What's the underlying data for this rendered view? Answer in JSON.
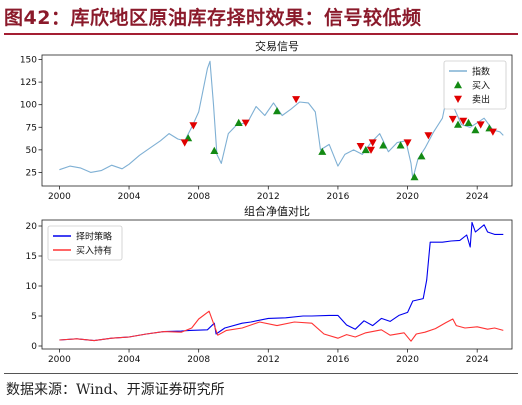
{
  "figure": {
    "title": "图42：库欣地区原油库存择时效果：信号较低频",
    "source": "数据来源：Wind、开源证券研究所"
  },
  "chart_data": [
    {
      "type": "line",
      "title": "交易信号",
      "xlim": [
        1999,
        2026
      ],
      "ylim": [
        10,
        155
      ],
      "x_ticks": [
        "2000",
        "2004",
        "2008",
        "2012",
        "2016",
        "2020",
        "2024"
      ],
      "y_ticks": [
        "25",
        "50",
        "75",
        "100",
        "125",
        "150"
      ],
      "legend_position": "top-right",
      "series": [
        {
          "name": "指数",
          "color": "#7fb0d4",
          "points": [
            [
              2000.0,
              28
            ],
            [
              2000.6,
              32
            ],
            [
              2001.2,
              30
            ],
            [
              2001.8,
              25
            ],
            [
              2002.4,
              27
            ],
            [
              2003.0,
              33
            ],
            [
              2003.6,
              29
            ],
            [
              2004.0,
              34
            ],
            [
              2004.6,
              44
            ],
            [
              2005.2,
              52
            ],
            [
              2005.8,
              60
            ],
            [
              2006.3,
              68
            ],
            [
              2006.8,
              62
            ],
            [
              2007.2,
              60
            ],
            [
              2007.6,
              75
            ],
            [
              2008.0,
              92
            ],
            [
              2008.5,
              140
            ],
            [
              2008.65,
              148
            ],
            [
              2008.85,
              100
            ],
            [
              2009.05,
              45
            ],
            [
              2009.3,
              35
            ],
            [
              2009.7,
              68
            ],
            [
              2010.2,
              78
            ],
            [
              2010.8,
              80
            ],
            [
              2011.3,
              98
            ],
            [
              2011.8,
              88
            ],
            [
              2012.3,
              102
            ],
            [
              2012.8,
              88
            ],
            [
              2013.3,
              95
            ],
            [
              2013.8,
              103
            ],
            [
              2014.3,
              102
            ],
            [
              2014.7,
              92
            ],
            [
              2015.0,
              50
            ],
            [
              2015.5,
              56
            ],
            [
              2016.0,
              32
            ],
            [
              2016.4,
              45
            ],
            [
              2016.9,
              50
            ],
            [
              2017.4,
              45
            ],
            [
              2017.9,
              58
            ],
            [
              2018.4,
              68
            ],
            [
              2018.9,
              48
            ],
            [
              2019.4,
              58
            ],
            [
              2019.9,
              60
            ],
            [
              2020.2,
              35
            ],
            [
              2020.3,
              18
            ],
            [
              2020.6,
              40
            ],
            [
              2021.0,
              52
            ],
            [
              2021.5,
              70
            ],
            [
              2022.0,
              85
            ],
            [
              2022.35,
              118
            ],
            [
              2022.7,
              95
            ],
            [
              2023.1,
              78
            ],
            [
              2023.6,
              75
            ],
            [
              2024.0,
              80
            ],
            [
              2024.4,
              85
            ],
            [
              2024.9,
              72
            ],
            [
              2025.3,
              70
            ],
            [
              2025.5,
              66
            ]
          ]
        },
        {
          "name": "买入",
          "color": "#138a13",
          "marker": "triangle-up",
          "points": [
            [
              2007.4,
              63
            ],
            [
              2008.9,
              49
            ],
            [
              2010.3,
              80
            ],
            [
              2012.5,
              93
            ],
            [
              2015.1,
              48
            ],
            [
              2017.6,
              50
            ],
            [
              2018.6,
              55
            ],
            [
              2019.6,
              55
            ],
            [
              2020.4,
              20
            ],
            [
              2020.8,
              43
            ],
            [
              2022.9,
              78
            ],
            [
              2023.5,
              80
            ],
            [
              2023.9,
              72
            ],
            [
              2024.7,
              74
            ]
          ]
        },
        {
          "name": "卖出",
          "color": "#e00000",
          "marker": "triangle-down",
          "points": [
            [
              2007.2,
              58
            ],
            [
              2007.7,
              77
            ],
            [
              2010.7,
              80
            ],
            [
              2013.6,
              106
            ],
            [
              2017.3,
              54
            ],
            [
              2017.9,
              50
            ],
            [
              2018.0,
              58
            ],
            [
              2020.0,
              58
            ],
            [
              2021.2,
              66
            ],
            [
              2022.6,
              84
            ],
            [
              2023.2,
              82
            ],
            [
              2024.2,
              78
            ],
            [
              2024.9,
              70
            ]
          ]
        }
      ]
    },
    {
      "type": "line",
      "title": "组合净值对比",
      "xlim": [
        1999,
        2026
      ],
      "ylim": [
        -0.5,
        21
      ],
      "x_ticks": [
        "2000",
        "2004",
        "2008",
        "2012",
        "2016",
        "2020",
        "2024"
      ],
      "y_ticks": [
        "0",
        "5",
        "10",
        "15",
        "20"
      ],
      "legend_position": "top-left",
      "series": [
        {
          "name": "择时策略",
          "color": "#0000ee",
          "points": [
            [
              2000.0,
              1.0
            ],
            [
              2001.0,
              1.2
            ],
            [
              2002.0,
              0.9
            ],
            [
              2003.0,
              1.3
            ],
            [
              2004.0,
              1.5
            ],
            [
              2005.0,
              2.0
            ],
            [
              2006.0,
              2.4
            ],
            [
              2007.0,
              2.5
            ],
            [
              2007.5,
              2.6
            ],
            [
              2008.5,
              2.7
            ],
            [
              2008.9,
              3.8
            ],
            [
              2009.0,
              2.0
            ],
            [
              2009.5,
              3.0
            ],
            [
              2010.5,
              3.8
            ],
            [
              2011.0,
              4.0
            ],
            [
              2012.0,
              4.6
            ],
            [
              2013.0,
              4.7
            ],
            [
              2014.0,
              5.0
            ],
            [
              2014.5,
              5.0
            ],
            [
              2015.5,
              5.1
            ],
            [
              2016.0,
              5.1
            ],
            [
              2016.5,
              3.5
            ],
            [
              2017.0,
              2.8
            ],
            [
              2017.5,
              4.2
            ],
            [
              2018.0,
              3.4
            ],
            [
              2018.5,
              4.6
            ],
            [
              2019.0,
              4.1
            ],
            [
              2019.5,
              5.1
            ],
            [
              2020.0,
              5.6
            ],
            [
              2020.3,
              7.5
            ],
            [
              2020.9,
              7.9
            ],
            [
              2021.1,
              11.0
            ],
            [
              2021.3,
              17.3
            ],
            [
              2022.0,
              17.3
            ],
            [
              2022.5,
              17.5
            ],
            [
              2023.0,
              17.6
            ],
            [
              2023.4,
              18.5
            ],
            [
              2023.6,
              16.5
            ],
            [
              2023.7,
              20.6
            ],
            [
              2023.9,
              19.0
            ],
            [
              2024.4,
              20.2
            ],
            [
              2024.6,
              19.0
            ],
            [
              2025.0,
              18.6
            ],
            [
              2025.5,
              18.6
            ]
          ]
        },
        {
          "name": "买入持有",
          "color": "#ff3333",
          "points": [
            [
              2000.0,
              1.0
            ],
            [
              2001.0,
              1.2
            ],
            [
              2002.0,
              0.9
            ],
            [
              2003.0,
              1.3
            ],
            [
              2004.0,
              1.5
            ],
            [
              2005.0,
              2.0
            ],
            [
              2006.0,
              2.4
            ],
            [
              2007.0,
              2.3
            ],
            [
              2007.6,
              3.0
            ],
            [
              2008.0,
              4.5
            ],
            [
              2008.6,
              5.8
            ],
            [
              2009.1,
              1.8
            ],
            [
              2009.6,
              2.6
            ],
            [
              2010.5,
              3.0
            ],
            [
              2011.5,
              4.0
            ],
            [
              2012.5,
              3.4
            ],
            [
              2013.5,
              4.0
            ],
            [
              2014.5,
              3.8
            ],
            [
              2015.2,
              2.0
            ],
            [
              2016.0,
              1.3
            ],
            [
              2016.5,
              1.9
            ],
            [
              2017.0,
              1.5
            ],
            [
              2017.6,
              2.2
            ],
            [
              2018.5,
              2.7
            ],
            [
              2019.0,
              1.8
            ],
            [
              2019.8,
              2.2
            ],
            [
              2020.2,
              0.8
            ],
            [
              2020.5,
              2.0
            ],
            [
              2021.0,
              2.3
            ],
            [
              2021.6,
              2.9
            ],
            [
              2022.2,
              3.9
            ],
            [
              2022.6,
              4.5
            ],
            [
              2022.8,
              3.4
            ],
            [
              2023.3,
              3.0
            ],
            [
              2024.0,
              3.2
            ],
            [
              2024.6,
              2.8
            ],
            [
              2025.0,
              3.0
            ],
            [
              2025.5,
              2.6
            ]
          ]
        }
      ]
    }
  ]
}
